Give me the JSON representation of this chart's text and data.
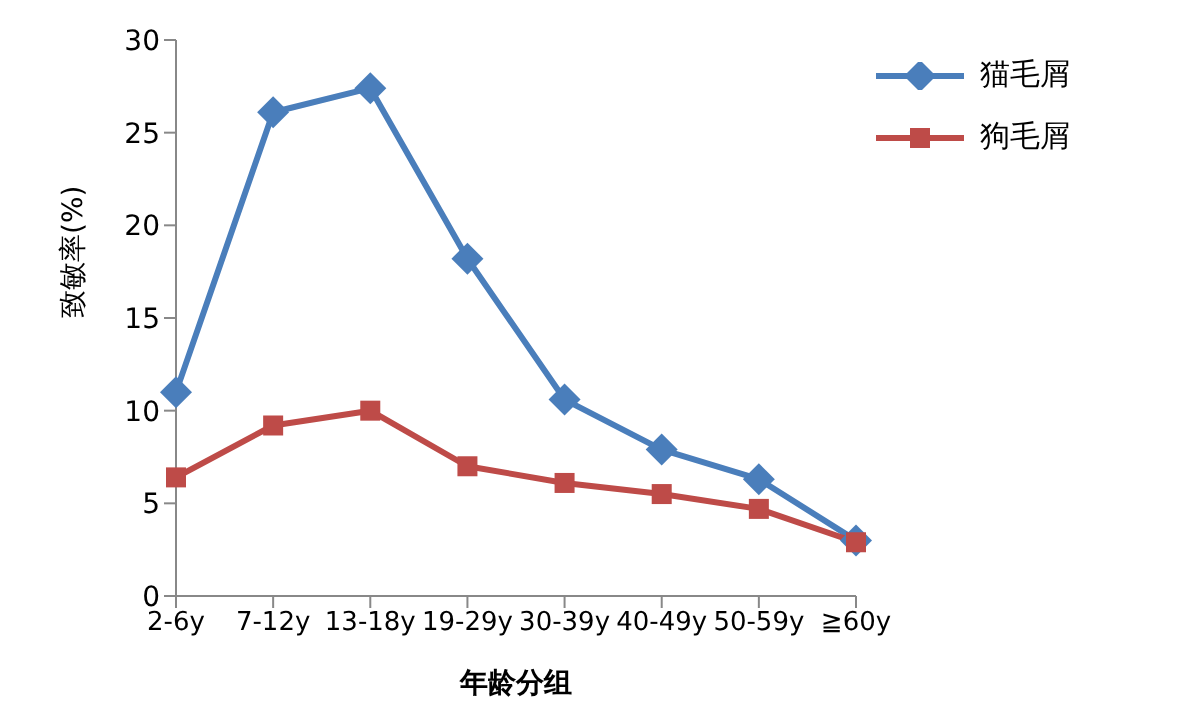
{
  "chart_data": {
    "type": "line",
    "xlabel": "年龄分组",
    "ylabel": "致敏率(%)",
    "categories": [
      "2-6y",
      "7-12y",
      "13-18y",
      "19-29y",
      "30-39y",
      "40-49y",
      "50-59y",
      "≧60y"
    ],
    "series": [
      {
        "name": "猫毛屑",
        "color": "#4a7ebb",
        "marker": "diamond",
        "values": [
          11.0,
          26.1,
          27.4,
          18.2,
          10.6,
          7.9,
          6.3,
          3.0
        ]
      },
      {
        "name": "狗毛屑",
        "color": "#be4b48",
        "marker": "square",
        "values": [
          6.4,
          9.2,
          10.0,
          7.0,
          6.1,
          5.5,
          4.7,
          2.9
        ]
      }
    ],
    "ylim": [
      0,
      30
    ],
    "yticks": [
      0,
      5,
      10,
      15,
      20,
      25,
      30
    ],
    "grid": false,
    "legend": "top right",
    "line_style": "solid"
  }
}
